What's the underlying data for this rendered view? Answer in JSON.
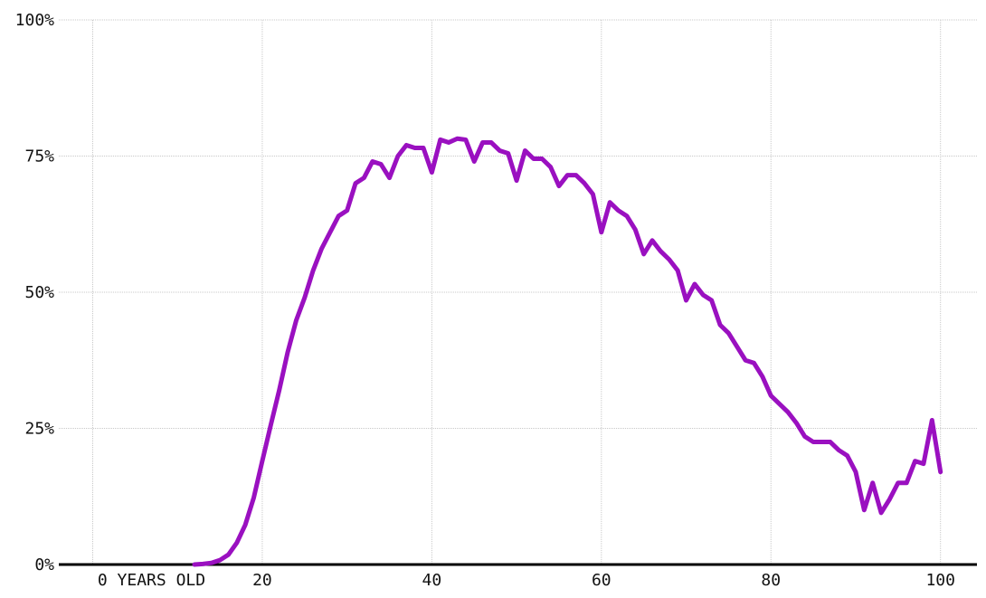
{
  "chart_data": {
    "type": "line",
    "x": [
      12,
      13,
      14,
      15,
      16,
      17,
      18,
      19,
      20,
      21,
      22,
      23,
      24,
      25,
      26,
      27,
      28,
      29,
      30,
      31,
      32,
      33,
      34,
      35,
      36,
      37,
      38,
      39,
      40,
      41,
      42,
      43,
      44,
      45,
      46,
      47,
      48,
      49,
      50,
      51,
      52,
      53,
      54,
      55,
      56,
      57,
      58,
      59,
      60,
      61,
      62,
      63,
      64,
      65,
      66,
      67,
      68,
      69,
      70,
      71,
      72,
      73,
      74,
      75,
      76,
      77,
      78,
      79,
      80,
      81,
      82,
      83,
      84,
      85,
      86,
      87,
      88,
      89,
      90,
      91,
      92,
      93,
      94,
      95,
      96,
      97,
      98,
      99,
      100
    ],
    "series": [
      {
        "color": "#9a10c0",
        "values": [
          0,
          0.1,
          0.3,
          0.8,
          1.8,
          4,
          7.3,
          12.3,
          19,
          25.6,
          32,
          39,
          44.8,
          49,
          54,
          58,
          61,
          64,
          65,
          70,
          71,
          74,
          73.5,
          71,
          75,
          77,
          76.5,
          76.5,
          72,
          78,
          77.5,
          78.2,
          78,
          74,
          77.5,
          77.5,
          76,
          75.5,
          70.5,
          76,
          74.5,
          74.5,
          73,
          69.5,
          71.5,
          71.5,
          70,
          68,
          61,
          66.5,
          65,
          64,
          61.5,
          57,
          59.5,
          57.5,
          56,
          54,
          48.5,
          51.5,
          49.5,
          48.5,
          44,
          42.5,
          40,
          37.5,
          37,
          34.5,
          31,
          29.5,
          28,
          26,
          23.5,
          22.5,
          22.5,
          22.5,
          21,
          20,
          17,
          10,
          15,
          9.5,
          12,
          15,
          15,
          19,
          18.5,
          26.5,
          17
        ]
      }
    ],
    "xlim": [
      -4,
      104.3
    ],
    "ylim": [
      0,
      100
    ],
    "xticks": [
      {
        "value": 0,
        "label": "0 YEARS OLD"
      },
      20,
      40,
      60,
      80,
      100
    ],
    "yticks": [
      {
        "value": 0,
        "label": "0%"
      },
      {
        "value": 25,
        "label": "25%"
      },
      {
        "value": 50,
        "label": "50%"
      },
      {
        "value": 75,
        "label": "75%"
      },
      {
        "value": 100,
        "label": "100%"
      }
    ],
    "grid": true
  }
}
